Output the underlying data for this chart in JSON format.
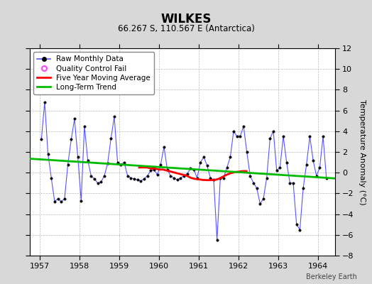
{
  "title": "WILKES",
  "subtitle": "66.267 S, 110.567 E (Antarctica)",
  "ylabel_right": "Temperature Anomaly (°C)",
  "watermark": "Berkeley Earth",
  "xlim": [
    1956.75,
    1964.42
  ],
  "ylim": [
    -8,
    12
  ],
  "yticks": [
    -8,
    -6,
    -4,
    -2,
    0,
    2,
    4,
    6,
    8,
    10,
    12
  ],
  "xticks": [
    1957,
    1958,
    1959,
    1960,
    1961,
    1962,
    1963,
    1964
  ],
  "background_color": "#d8d8d8",
  "plot_bg_color": "#ffffff",
  "raw_color": "#5555ff",
  "ma_color": "#ff0000",
  "trend_color": "#00bb00",
  "qc_color": "#ff44ff",
  "raw_data_x": [
    1957.042,
    1957.125,
    1957.208,
    1957.292,
    1957.375,
    1957.458,
    1957.542,
    1957.625,
    1957.708,
    1957.792,
    1957.875,
    1957.958,
    1958.042,
    1958.125,
    1958.208,
    1958.292,
    1958.375,
    1958.458,
    1958.542,
    1958.625,
    1958.708,
    1958.792,
    1958.875,
    1958.958,
    1959.042,
    1959.125,
    1959.208,
    1959.292,
    1959.375,
    1959.458,
    1959.542,
    1959.625,
    1959.708,
    1959.792,
    1959.875,
    1959.958,
    1960.042,
    1960.125,
    1960.208,
    1960.292,
    1960.375,
    1960.458,
    1960.542,
    1960.625,
    1960.708,
    1960.792,
    1960.875,
    1960.958,
    1961.042,
    1961.125,
    1961.208,
    1961.292,
    1961.375,
    1961.458,
    1961.542,
    1961.625,
    1961.708,
    1961.792,
    1961.875,
    1961.958,
    1962.042,
    1962.125,
    1962.208,
    1962.292,
    1962.375,
    1962.458,
    1962.542,
    1962.625,
    1962.708,
    1962.792,
    1962.875,
    1962.958,
    1963.042,
    1963.125,
    1963.208,
    1963.292,
    1963.375,
    1963.458,
    1963.542,
    1963.625,
    1963.708,
    1963.792,
    1963.875,
    1963.958,
    1964.042,
    1964.125,
    1964.208
  ],
  "raw_data_y": [
    3.2,
    6.8,
    1.8,
    -0.5,
    -2.8,
    -2.5,
    -2.8,
    -2.5,
    0.8,
    3.2,
    5.2,
    1.5,
    -2.7,
    4.5,
    1.2,
    -0.3,
    -0.6,
    -1.0,
    -0.9,
    -0.3,
    0.9,
    3.3,
    5.4,
    1.0,
    0.8,
    1.0,
    -0.3,
    -0.5,
    -0.6,
    -0.7,
    -0.8,
    -0.6,
    -0.3,
    0.2,
    0.3,
    -0.2,
    0.8,
    2.5,
    0.3,
    -0.3,
    -0.5,
    -0.7,
    -0.5,
    -0.3,
    -0.1,
    0.4,
    0.3,
    -0.5,
    1.0,
    1.5,
    0.7,
    -0.5,
    -0.7,
    -6.5,
    -0.5,
    -0.5,
    0.5,
    1.5,
    4.0,
    3.5,
    3.5,
    4.5,
    2.0,
    -0.3,
    -1.0,
    -1.5,
    -3.0,
    -2.5,
    -0.5,
    3.3,
    4.0,
    0.2,
    0.5,
    3.5,
    1.0,
    -1.0,
    -1.0,
    -5.0,
    -5.5,
    -1.5,
    0.8,
    3.5,
    1.2,
    -0.3,
    0.5,
    3.5,
    -0.5
  ],
  "ma_x": [
    1959.5,
    1959.6,
    1959.7,
    1959.8,
    1959.9,
    1960.0,
    1960.1,
    1960.2,
    1960.3,
    1960.4,
    1960.5,
    1960.6,
    1960.7,
    1960.8,
    1960.9,
    1961.0,
    1961.1,
    1961.2,
    1961.3,
    1961.4,
    1961.5,
    1961.6,
    1961.7,
    1961.8,
    1961.9,
    1962.0,
    1962.1,
    1962.2
  ],
  "ma_y": [
    0.5,
    0.5,
    0.5,
    0.4,
    0.4,
    0.3,
    0.3,
    0.2,
    0.1,
    0.0,
    -0.1,
    -0.2,
    -0.3,
    -0.5,
    -0.6,
    -0.65,
    -0.7,
    -0.72,
    -0.72,
    -0.7,
    -0.6,
    -0.4,
    -0.2,
    -0.05,
    0.05,
    0.1,
    0.15,
    0.15
  ],
  "trend_x": [
    1956.75,
    1964.42
  ],
  "trend_y": [
    1.35,
    -0.55
  ],
  "figsize": [
    5.24,
    4.0
  ],
  "dpi": 100
}
